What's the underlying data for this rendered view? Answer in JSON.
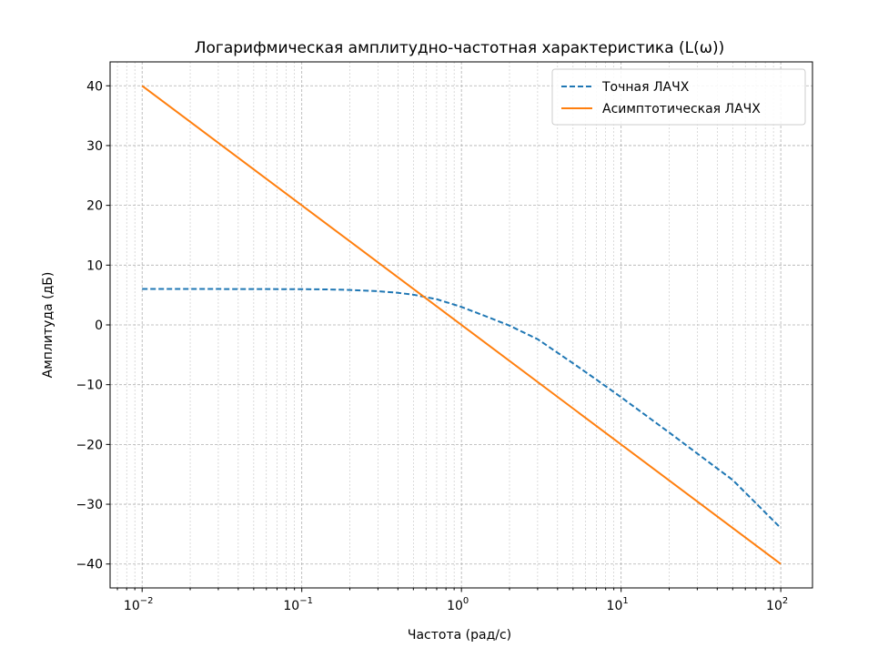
{
  "chart_data": {
    "type": "line",
    "title": "Логарифмическая амплитудно-частотная характеристика (L(ω))",
    "xlabel": "Частота (рад/с)",
    "ylabel": "Амплитуда (дБ)",
    "xscale": "log",
    "xlim": [
      0.0063,
      158
    ],
    "ylim": [
      -44,
      44
    ],
    "x_ticks": [
      {
        "base": "10",
        "exp": "−2",
        "value": 0.01
      },
      {
        "base": "10",
        "exp": "−1",
        "value": 0.1
      },
      {
        "base": "10",
        "exp": "0",
        "value": 1
      },
      {
        "base": "10",
        "exp": "1",
        "value": 10
      },
      {
        "base": "10",
        "exp": "2",
        "value": 100
      }
    ],
    "y_ticks": [
      {
        "label": "40",
        "value": 40
      },
      {
        "label": "30",
        "value": 30
      },
      {
        "label": "20",
        "value": 20
      },
      {
        "label": "10",
        "value": 10
      },
      {
        "label": "0",
        "value": 0
      },
      {
        "label": "−10",
        "value": -10
      },
      {
        "label": "−20",
        "value": -20
      },
      {
        "label": "−30",
        "value": -30
      },
      {
        "label": "−40",
        "value": -40
      }
    ],
    "grid": true,
    "legend": "top-right",
    "series": [
      {
        "name": "Точная ЛАЧХ",
        "style": "dashed",
        "color": "#1f77b4",
        "x": [
          0.01,
          0.02,
          0.05,
          0.1,
          0.15,
          0.2,
          0.3,
          0.4,
          0.5,
          0.7,
          1,
          1.5,
          2,
          3,
          5,
          7,
          10,
          20,
          50,
          100
        ],
        "y": [
          6.02,
          6.02,
          5.99,
          5.98,
          5.93,
          5.85,
          5.64,
          5.37,
          5.05,
          4.3,
          3.01,
          1.2,
          -0.12,
          -2.39,
          -6.42,
          -9.15,
          -12.1,
          -18.0,
          -25.95,
          -33.98
        ]
      },
      {
        "name": "Асимптотическая ЛАЧХ",
        "style": "solid",
        "color": "#ff7f0e",
        "x": [
          0.01,
          100
        ],
        "y": [
          40,
          -40
        ]
      }
    ]
  }
}
